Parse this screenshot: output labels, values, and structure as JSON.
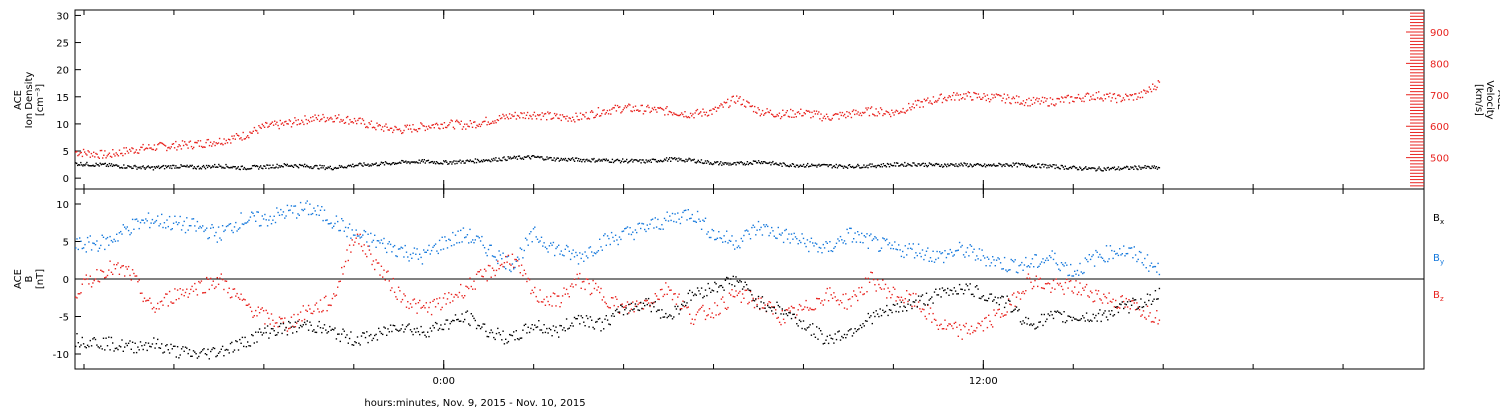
{
  "colors": {
    "axis": "#000000",
    "density": "#000000",
    "velocity": "#e8231f",
    "bx": "#000000",
    "by": "#1478dc",
    "bz": "#e8231f"
  },
  "x_axis": {
    "label": "hours:minutes, Nov.  9, 2015 - Nov. 10, 2015",
    "range_hours": [
      -8.2,
      21.8
    ],
    "major_ticks": [
      {
        "hour": 0,
        "label": "0:00"
      },
      {
        "hour": 12,
        "label": "12:00"
      }
    ],
    "minor_tick_step_hours": 2
  },
  "chart_data": [
    {
      "type": "scatter",
      "panel": "top",
      "ylabel_lines": [
        "ACE",
        "Ion Density",
        "[cm⁻³]"
      ],
      "ylabel2_lines": [
        "ACE",
        "Velocity",
        "[km/s]"
      ],
      "ylim": [
        -2,
        31
      ],
      "y2lim": [
        400,
        970
      ],
      "yticks": [
        0,
        5,
        10,
        15,
        20,
        25,
        30
      ],
      "y2ticks": [
        500,
        600,
        700,
        800,
        900
      ],
      "series": [
        {
          "key": "density",
          "axis": "left",
          "x": [
            -8.2,
            -7.5,
            -7,
            -6.5,
            -6,
            -5.5,
            -5,
            -4.5,
            -4,
            -3.5,
            -3,
            -2.5,
            -2,
            -1.5,
            -1,
            -0.5,
            0,
            0.5,
            1,
            1.5,
            2,
            2.5,
            3,
            3.5,
            4,
            4.5,
            5,
            5.5,
            6,
            6.5,
            7,
            7.5,
            8,
            8.5,
            9,
            9.5,
            10,
            10.5,
            11,
            11.5,
            12,
            12.5,
            13,
            13.5,
            14,
            14.5,
            15,
            15.5,
            15.9
          ],
          "y": [
            2.8,
            2.5,
            2.2,
            2.0,
            2.3,
            2.1,
            2.4,
            2.0,
            2.2,
            2.5,
            2.3,
            2.0,
            2.5,
            2.7,
            3.0,
            3.2,
            3.0,
            3.2,
            3.5,
            3.8,
            4.0,
            3.6,
            3.5,
            3.4,
            3.3,
            3.2,
            3.6,
            3.4,
            2.9,
            2.7,
            3.2,
            2.6,
            2.5,
            2.4,
            2.3,
            2.4,
            2.6,
            2.7,
            2.5,
            2.6,
            2.4,
            2.6,
            2.5,
            2.3,
            2.0,
            1.8,
            1.9,
            2.1,
            2.0
          ]
        },
        {
          "key": "velocity",
          "axis": "right",
          "x": [
            -8.2,
            -7.5,
            -7,
            -6.5,
            -6,
            -5.5,
            -5,
            -4.5,
            -4,
            -3.5,
            -3,
            -2.5,
            -2,
            -1.5,
            -1,
            -0.5,
            0,
            0.5,
            1,
            1.5,
            2,
            2.5,
            3,
            3.5,
            4,
            4.5,
            5,
            5.5,
            6,
            6.5,
            7,
            7.5,
            8,
            8.5,
            9,
            9.5,
            10,
            10.5,
            11,
            11.5,
            12,
            12.5,
            13,
            13.5,
            14,
            14.5,
            15,
            15.5,
            15.9
          ],
          "y": [
            520,
            510,
            525,
            535,
            540,
            545,
            555,
            570,
            600,
            610,
            625,
            630,
            620,
            600,
            590,
            600,
            610,
            605,
            620,
            635,
            640,
            630,
            630,
            650,
            660,
            655,
            650,
            640,
            650,
            690,
            650,
            640,
            645,
            630,
            640,
            650,
            645,
            670,
            690,
            700,
            695,
            690,
            680,
            680,
            690,
            700,
            690,
            700,
            740
          ]
        }
      ]
    },
    {
      "type": "scatter",
      "panel": "bottom",
      "ylabel_lines": [
        "ACE",
        "B",
        "[nT]"
      ],
      "ylim": [
        -12,
        12
      ],
      "yticks": [
        -10,
        -5,
        0,
        5,
        10
      ],
      "zero_line": true,
      "series": [
        {
          "key": "bx",
          "name": "B",
          "sub": "x",
          "x": [
            -8.2,
            -7.5,
            -7,
            -6.5,
            -6,
            -5.5,
            -5,
            -4.5,
            -4,
            -3.5,
            -3,
            -2.5,
            -2,
            -1.5,
            -1,
            -0.5,
            0,
            0.5,
            1,
            1.5,
            2,
            2.5,
            3,
            3.5,
            4,
            4.5,
            5,
            5.5,
            6,
            6.5,
            7,
            7.5,
            8,
            8.5,
            9,
            9.5,
            10,
            10.5,
            11,
            11.5,
            12,
            12.5,
            13,
            13.5,
            14,
            14.5,
            15,
            15.5,
            15.9
          ],
          "y": [
            -8,
            -8.5,
            -9,
            -8.5,
            -9.5,
            -10,
            -9.5,
            -8.5,
            -7,
            -6.5,
            -6,
            -7,
            -8,
            -7.5,
            -6,
            -7,
            -6,
            -5,
            -7,
            -8,
            -6,
            -7,
            -5,
            -6,
            -4,
            -3,
            -5,
            -2,
            -1,
            0,
            -3,
            -4,
            -6,
            -8,
            -7,
            -5,
            -4,
            -3,
            -2,
            -1,
            -2,
            -3,
            -6,
            -5,
            -5,
            -5,
            -4,
            -3,
            -2
          ]
        },
        {
          "key": "by",
          "name": "B",
          "sub": "y",
          "x": [
            -8.2,
            -7.5,
            -7,
            -6.5,
            -6,
            -5.5,
            -5,
            -4.5,
            -4,
            -3.5,
            -3,
            -2.5,
            -2,
            -1.5,
            -1,
            -0.5,
            0,
            0.5,
            1,
            1.5,
            2,
            2.5,
            3,
            3.5,
            4,
            4.5,
            5,
            5.5,
            6,
            6.5,
            7,
            7.5,
            8,
            8.5,
            9,
            9.5,
            10,
            10.5,
            11,
            11.5,
            12,
            12.5,
            13,
            13.5,
            14,
            14.5,
            15,
            15.5,
            15.9
          ],
          "y": [
            4.5,
            5,
            7,
            8,
            7.5,
            7,
            6,
            8,
            8,
            9,
            9.5,
            8,
            6,
            5,
            4,
            3,
            5,
            6,
            4,
            2,
            6,
            4,
            3,
            5,
            6,
            7,
            8,
            9,
            6,
            5,
            7,
            6,
            5,
            4,
            6,
            5,
            4,
            4,
            3,
            4,
            3,
            2,
            2,
            3,
            1,
            3,
            4,
            3,
            1
          ]
        },
        {
          "key": "bz",
          "name": "B",
          "sub": "z",
          "x": [
            -8.2,
            -7.5,
            -7,
            -6.5,
            -6,
            -5.5,
            -5,
            -4.5,
            -4,
            -3.5,
            -3,
            -2.5,
            -2,
            -1.5,
            -1,
            -0.5,
            0,
            0.5,
            1,
            1.5,
            2,
            2.5,
            3,
            3.5,
            4,
            4.5,
            5,
            5.5,
            6,
            6.5,
            7,
            7.5,
            8,
            8.5,
            9,
            9.5,
            10,
            10.5,
            11,
            11.5,
            12,
            12.5,
            13,
            13.5,
            14,
            14.5,
            15,
            15.5,
            15.9
          ],
          "y": [
            -1.5,
            1.5,
            1,
            -4,
            -2,
            -1,
            0,
            -3,
            -5,
            -6,
            -4,
            -3,
            6,
            2,
            -2,
            -4,
            -3,
            -1,
            1,
            3,
            -2,
            -3,
            0,
            -2,
            -4,
            -3,
            -1,
            -5,
            -4,
            -2,
            -3,
            -5,
            -4,
            -2,
            -3,
            0,
            -2,
            -3,
            -6,
            -7,
            -6,
            -4,
            0,
            -1,
            -1,
            -2,
            -3,
            -4,
            -5
          ]
        }
      ]
    }
  ]
}
